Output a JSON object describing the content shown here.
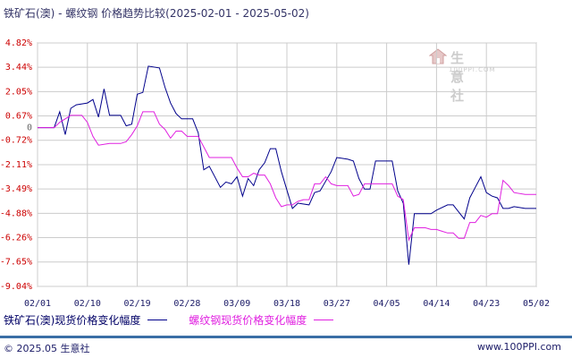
{
  "title": "铁矿石(澳) - 螺纹钢 价格趋势比较(2025-02-01 - 2025-05-02)",
  "watermark": {
    "name": "生意社",
    "site": "100PPI.COM"
  },
  "footer": {
    "copyright": "© 2025.05 生意社",
    "site": "www.100PPI.com"
  },
  "colors": {
    "series1": "#00008b",
    "series2": "#e020e0",
    "grid": "#cccccc",
    "axis_label": "#cc0000"
  },
  "chart_data": {
    "type": "line",
    "title": "铁矿石(澳) - 螺纹钢 价格趋势比较(2025-02-01 - 2025-05-02)",
    "ylabel_unit": "%",
    "ylim": [
      -9.04,
      4.82
    ],
    "yticks": [
      "4.82%",
      "3.44%",
      "2.05%",
      "0.67%",
      "0",
      "-0.72%",
      "-2.11%",
      "-3.49%",
      "-4.88%",
      "-6.26%",
      "-7.65%",
      "-9.04%"
    ],
    "ytick_values": [
      4.82,
      3.44,
      2.05,
      0.67,
      0,
      -0.72,
      -2.11,
      -3.49,
      -4.88,
      -6.26,
      -7.65,
      -9.04
    ],
    "xlim": [
      0,
      90
    ],
    "xticks": [
      "02/01",
      "02/10",
      "02/19",
      "02/28",
      "03/09",
      "03/18",
      "03/27",
      "04/05",
      "04/14",
      "04/23",
      "05/02"
    ],
    "xtick_values": [
      0,
      9,
      18,
      27,
      36,
      45,
      54,
      63,
      72,
      81,
      90
    ],
    "grid": true,
    "legend": "bottom",
    "series": [
      {
        "name": "铁矿石(澳)现货价格变化幅度",
        "points": [
          [
            0,
            0
          ],
          [
            3,
            0
          ],
          [
            4,
            0.9
          ],
          [
            5,
            -0.4
          ],
          [
            6,
            1.1
          ],
          [
            7,
            1.3
          ],
          [
            9,
            1.4
          ],
          [
            10,
            1.6
          ],
          [
            11,
            0.6
          ],
          [
            12,
            2.2
          ],
          [
            13,
            0.7
          ],
          [
            15,
            0.7
          ],
          [
            16,
            0.1
          ],
          [
            17,
            0.2
          ],
          [
            18,
            1.9
          ],
          [
            19,
            2
          ],
          [
            20,
            3.5
          ],
          [
            22,
            3.4
          ],
          [
            23,
            2.3
          ],
          [
            24,
            1.4
          ],
          [
            25,
            0.8
          ],
          [
            26,
            0.5
          ],
          [
            27,
            0.5
          ],
          [
            28,
            0.5
          ],
          [
            29,
            -0.3
          ],
          [
            30,
            -2.4
          ],
          [
            31,
            -2.2
          ],
          [
            33,
            -3.4
          ],
          [
            34,
            -3.1
          ],
          [
            35,
            -3.2
          ],
          [
            36,
            -2.8
          ],
          [
            37,
            -3.9
          ],
          [
            38,
            -2.9
          ],
          [
            39,
            -3.3
          ],
          [
            40,
            -2.4
          ],
          [
            41,
            -2
          ],
          [
            42,
            -1.2
          ],
          [
            43,
            -1.2
          ],
          [
            44,
            -2.5
          ],
          [
            46,
            -4.6
          ],
          [
            47,
            -4.3
          ],
          [
            49,
            -4.4
          ],
          [
            50,
            -3.7
          ],
          [
            51,
            -3.6
          ],
          [
            53,
            -2.5
          ],
          [
            54,
            -1.7
          ],
          [
            56,
            -1.8
          ],
          [
            57,
            -1.9
          ],
          [
            58,
            -2.9
          ],
          [
            59,
            -3.5
          ],
          [
            60,
            -3.5
          ],
          [
            61,
            -1.9
          ],
          [
            64,
            -1.9
          ],
          [
            65,
            -3.6
          ],
          [
            66,
            -4.3
          ],
          [
            67,
            -7.8
          ],
          [
            68,
            -4.9
          ],
          [
            70,
            -4.9
          ],
          [
            71,
            -4.9
          ],
          [
            72,
            -4.7
          ],
          [
            74,
            -4.4
          ],
          [
            75,
            -4.4
          ],
          [
            76,
            -4.8
          ],
          [
            77,
            -5.2
          ],
          [
            78,
            -4
          ],
          [
            79,
            -3.4
          ],
          [
            80,
            -2.8
          ],
          [
            81,
            -3.7
          ],
          [
            82,
            -3.9
          ],
          [
            83,
            -4
          ],
          [
            84,
            -4.6
          ],
          [
            85,
            -4.6
          ],
          [
            86,
            -4.5
          ],
          [
            88,
            -4.6
          ],
          [
            89,
            -4.6
          ],
          [
            90,
            -4.6
          ]
        ]
      },
      {
        "name": "螺纹钢现货价格变化幅度",
        "points": [
          [
            0,
            0
          ],
          [
            3,
            0
          ],
          [
            4,
            0.3
          ],
          [
            6,
            0.7
          ],
          [
            8,
            0.7
          ],
          [
            9,
            0.3
          ],
          [
            10,
            -0.5
          ],
          [
            11,
            -1
          ],
          [
            13,
            -0.9
          ],
          [
            15,
            -0.9
          ],
          [
            16,
            -0.8
          ],
          [
            17,
            -0.4
          ],
          [
            18,
            0.1
          ],
          [
            19,
            0.9
          ],
          [
            20,
            0.9
          ],
          [
            21,
            0.9
          ],
          [
            22,
            0.2
          ],
          [
            23,
            -0.1
          ],
          [
            24,
            -0.6
          ],
          [
            25,
            -0.2
          ],
          [
            26,
            -0.2
          ],
          [
            27,
            -0.5
          ],
          [
            28,
            -0.5
          ],
          [
            29,
            -0.5
          ],
          [
            31,
            -1.7
          ],
          [
            32,
            -1.7
          ],
          [
            34,
            -1.7
          ],
          [
            35,
            -1.7
          ],
          [
            36,
            -2.3
          ],
          [
            37,
            -2.8
          ],
          [
            38,
            -2.8
          ],
          [
            39,
            -2.6
          ],
          [
            40,
            -2.7
          ],
          [
            41,
            -2.7
          ],
          [
            42,
            -3.2
          ],
          [
            43,
            -4
          ],
          [
            44,
            -4.5
          ],
          [
            45,
            -4.4
          ],
          [
            46,
            -4.4
          ],
          [
            47,
            -4.2
          ],
          [
            48,
            -4.1
          ],
          [
            49,
            -4.1
          ],
          [
            50,
            -3.2
          ],
          [
            51,
            -3.2
          ],
          [
            52,
            -2.8
          ],
          [
            53,
            -3.2
          ],
          [
            54,
            -3.3
          ],
          [
            55,
            -3.3
          ],
          [
            56,
            -3.3
          ],
          [
            57,
            -3.9
          ],
          [
            58,
            -3.8
          ],
          [
            59,
            -3.2
          ],
          [
            60,
            -3.2
          ],
          [
            61,
            -3.2
          ],
          [
            62,
            -3.2
          ],
          [
            63,
            -3.2
          ],
          [
            64,
            -3.2
          ],
          [
            65,
            -3.9
          ],
          [
            66,
            -4.1
          ],
          [
            67,
            -6.4
          ],
          [
            68,
            -5.7
          ],
          [
            69,
            -5.7
          ],
          [
            70,
            -5.7
          ],
          [
            71,
            -5.8
          ],
          [
            72,
            -5.8
          ],
          [
            73,
            -5.9
          ],
          [
            74,
            -6
          ],
          [
            75,
            -6
          ],
          [
            76,
            -6.3
          ],
          [
            77,
            -6.3
          ],
          [
            78,
            -5.4
          ],
          [
            79,
            -5.4
          ],
          [
            80,
            -5
          ],
          [
            81,
            -5.1
          ],
          [
            82,
            -4.9
          ],
          [
            83,
            -4.9
          ],
          [
            84,
            -3
          ],
          [
            85,
            -3.3
          ],
          [
            86,
            -3.7
          ],
          [
            88,
            -3.8
          ],
          [
            89,
            -3.8
          ],
          [
            90,
            -3.8
          ]
        ]
      }
    ]
  }
}
